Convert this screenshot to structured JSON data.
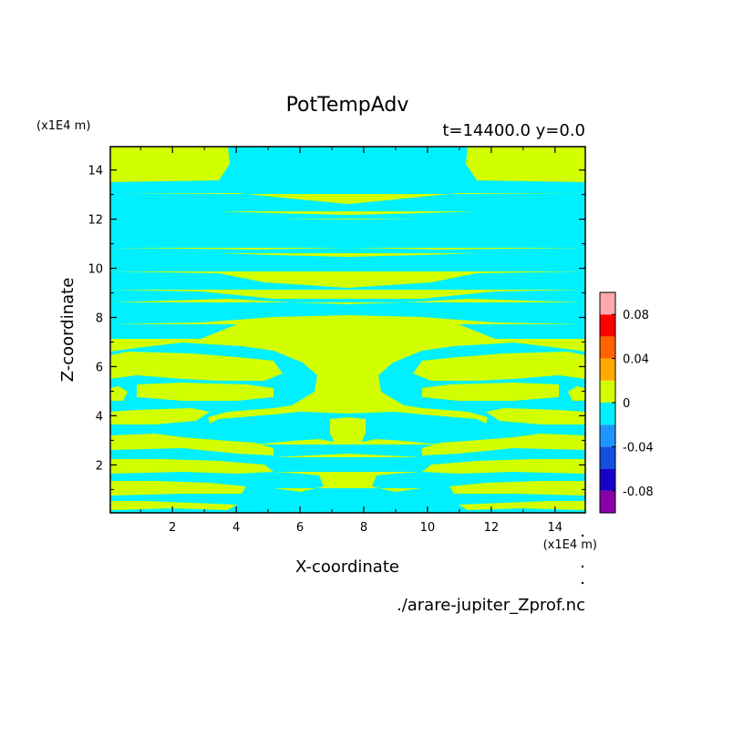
{
  "chart_data": {
    "type": "heatmap",
    "title": "PotTempAdv",
    "subtitle": "t=14400.0 y=0.0",
    "xlabel": "X-coordinate",
    "ylabel": "Z-coordinate",
    "x_unit": "(x1E4 m)",
    "y_unit": "(x1E4 m)",
    "xlim": [
      0.05,
      14.95
    ],
    "ylim": [
      0.05,
      14.95
    ],
    "x_ticks": [
      2,
      4,
      6,
      8,
      10,
      12,
      14
    ],
    "y_ticks": [
      2,
      4,
      6,
      8,
      10,
      12,
      14
    ],
    "source_file": "./arare-jupiter_Zprof.nc",
    "colorbar": {
      "levels": [
        -0.1,
        -0.08,
        -0.06,
        -0.04,
        -0.02,
        0,
        0.02,
        0.04,
        0.06,
        0.08,
        0.1
      ],
      "colors": [
        "#8a00a8",
        "#1800c8",
        "#1450e0",
        "#1e96ff",
        "#00f0ff",
        "#d2ff00",
        "#ffaa00",
        "#ff6400",
        "#ff0000",
        "#ffaaaa"
      ],
      "tick_labels": [
        "-0.08",
        "-0.04",
        "0",
        "0.04",
        "0.08"
      ],
      "tick_values": [
        -0.08,
        -0.04,
        0,
        0.04,
        0.08
      ]
    },
    "field": {
      "background_class": "slightly negative (-0.02 to 0)",
      "positive_class": "slightly positive (0 to 0.02)",
      "band_z_centers_upper": [
        14.4,
        12.8,
        11.5,
        10.9,
        9.8,
        8.6,
        6.6,
        5.7,
        4.9
      ],
      "band_z_centers_lower": [
        3.0,
        2.3,
        1.6,
        0.9,
        0.3
      ]
    }
  }
}
